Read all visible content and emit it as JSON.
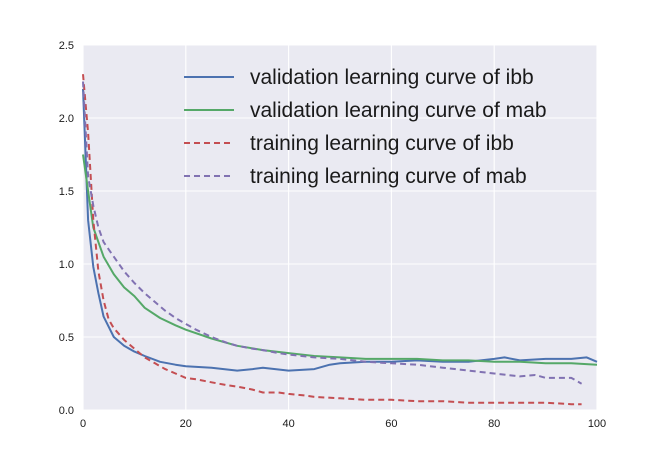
{
  "chart_data": {
    "type": "line",
    "title": "",
    "xlabel": "",
    "ylabel": "",
    "xlim": [
      0,
      100
    ],
    "ylim": [
      0.0,
      2.5
    ],
    "x_ticks": [
      {
        "value": 0,
        "label": "0"
      },
      {
        "value": 20,
        "label": "20"
      },
      {
        "value": 40,
        "label": "40"
      },
      {
        "value": 60,
        "label": "60"
      },
      {
        "value": 80,
        "label": "80"
      },
      {
        "value": 100,
        "label": "100"
      }
    ],
    "y_ticks": [
      {
        "value": 0.0,
        "label": "0.0"
      },
      {
        "value": 0.5,
        "label": "0.5"
      },
      {
        "value": 1.0,
        "label": "1.0"
      },
      {
        "value": 1.5,
        "label": "1.5"
      },
      {
        "value": 2.0,
        "label": "2.0"
      },
      {
        "value": 2.5,
        "label": "2.5"
      }
    ],
    "grid": true,
    "legend_position": "top-right",
    "series": [
      {
        "name": "validation learning curve of ibb",
        "color": "#4c72b0",
        "dash": "solid",
        "x": [
          0,
          1,
          2,
          3,
          4,
          6,
          8,
          10,
          12,
          15,
          18,
          20,
          25,
          30,
          33,
          35,
          40,
          45,
          48,
          50,
          55,
          60,
          65,
          70,
          75,
          80,
          82,
          85,
          90,
          95,
          98,
          100
        ],
        "y": [
          2.2,
          1.3,
          0.98,
          0.8,
          0.64,
          0.5,
          0.44,
          0.4,
          0.37,
          0.33,
          0.31,
          0.3,
          0.29,
          0.27,
          0.28,
          0.29,
          0.27,
          0.28,
          0.31,
          0.32,
          0.33,
          0.33,
          0.34,
          0.33,
          0.33,
          0.35,
          0.36,
          0.34,
          0.35,
          0.35,
          0.36,
          0.33
        ]
      },
      {
        "name": "validation learning curve of mab",
        "color": "#55a868",
        "dash": "solid",
        "x": [
          0,
          1,
          2,
          3,
          4,
          6,
          8,
          10,
          12,
          15,
          18,
          20,
          25,
          30,
          35,
          40,
          45,
          50,
          55,
          60,
          65,
          70,
          75,
          80,
          85,
          90,
          95,
          100
        ],
        "y": [
          1.75,
          1.5,
          1.25,
          1.15,
          1.05,
          0.93,
          0.84,
          0.78,
          0.7,
          0.63,
          0.58,
          0.55,
          0.49,
          0.44,
          0.41,
          0.39,
          0.37,
          0.36,
          0.35,
          0.35,
          0.35,
          0.34,
          0.34,
          0.33,
          0.33,
          0.32,
          0.32,
          0.31
        ]
      },
      {
        "name": "training learning curve of ibb",
        "color": "#c44e52",
        "dash": "dashed",
        "x": [
          0,
          1,
          2,
          3,
          4,
          5,
          6,
          8,
          10,
          12,
          14,
          16,
          18,
          20,
          22,
          25,
          28,
          30,
          33,
          35,
          38,
          40,
          43,
          45,
          50,
          55,
          60,
          65,
          70,
          75,
          80,
          85,
          90,
          95,
          97
        ],
        "y": [
          2.3,
          1.9,
          1.3,
          0.95,
          0.75,
          0.62,
          0.56,
          0.48,
          0.42,
          0.36,
          0.32,
          0.28,
          0.25,
          0.22,
          0.21,
          0.19,
          0.17,
          0.16,
          0.14,
          0.12,
          0.12,
          0.11,
          0.1,
          0.09,
          0.08,
          0.07,
          0.07,
          0.06,
          0.06,
          0.05,
          0.05,
          0.05,
          0.05,
          0.04,
          0.04
        ]
      },
      {
        "name": "training learning curve of mab",
        "color": "#8172b2",
        "dash": "dashed",
        "x": [
          0,
          1,
          2,
          3,
          4,
          5,
          6,
          8,
          10,
          12,
          14,
          16,
          18,
          20,
          22,
          25,
          28,
          30,
          33,
          35,
          38,
          40,
          45,
          50,
          55,
          60,
          65,
          70,
          75,
          80,
          85,
          88,
          90,
          95,
          97
        ],
        "y": [
          2.25,
          1.6,
          1.4,
          1.25,
          1.15,
          1.1,
          1.05,
          0.95,
          0.87,
          0.8,
          0.74,
          0.68,
          0.63,
          0.59,
          0.55,
          0.5,
          0.46,
          0.44,
          0.42,
          0.41,
          0.39,
          0.38,
          0.36,
          0.35,
          0.33,
          0.32,
          0.31,
          0.29,
          0.27,
          0.25,
          0.23,
          0.24,
          0.22,
          0.22,
          0.18
        ]
      }
    ]
  }
}
